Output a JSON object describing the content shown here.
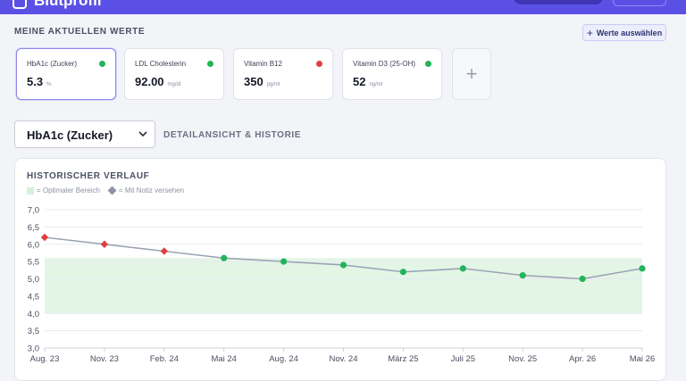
{
  "header": {
    "brand": "Blutprofil"
  },
  "values_section": {
    "title": "MEINE AKTUELLEN WERTE",
    "select_button": "Werte auswählen",
    "cards": [
      {
        "name": "HbA1c (Zucker)",
        "value": "5.3",
        "unit": "%",
        "status_color": "#22b45a",
        "active": true
      },
      {
        "name": "LDL Cholesterin",
        "value": "92.00",
        "unit": "mg/dl",
        "status_color": "#22b45a",
        "active": false
      },
      {
        "name": "Vitamin B12",
        "value": "350",
        "unit": "pg/ml",
        "status_color": "#e04040",
        "active": false
      },
      {
        "name": "Vitamin D3 (25-OH)",
        "value": "52",
        "unit": "ng/ml",
        "status_color": "#22b45a",
        "active": false
      }
    ]
  },
  "detail": {
    "selected": "HbA1c (Zucker)",
    "title": "DETAILANSICHT & HISTORIE"
  },
  "history": {
    "title": "HISTORISCHER VERLAUF",
    "legend_optimal": "= Optimaler Bereich",
    "legend_note": "= Mit Notiz versehen"
  },
  "colors": {
    "accent": "#5b50e6",
    "ok": "#22b45a",
    "bad": "#e04040",
    "line": "#9aa2b6",
    "optimal": "#e3f6e6"
  },
  "chart_data": {
    "type": "line",
    "categories": [
      "Aug. 23",
      "Nov. 23",
      "Feb. 24",
      "Mai 24",
      "Aug. 24",
      "Nov. 24",
      "März 25",
      "Juli 25",
      "Nov. 25",
      "Apr. 26",
      "Mai 26"
    ],
    "y_tick_labels": [
      "7,0",
      "6,5",
      "6,0",
      "5,5",
      "5,0",
      "4,5",
      "4,0",
      "3,5",
      "3,0"
    ],
    "series": [
      {
        "values": [
          6.2,
          6.0,
          5.8,
          5.6,
          5.5,
          5.4,
          5.2,
          5.3,
          5.1,
          5.0,
          5.3
        ],
        "markers": [
          "note",
          "bad",
          "bad",
          "ok",
          "ok",
          "ok",
          "ok",
          "ok",
          "ok",
          "ok",
          "ok"
        ]
      }
    ],
    "optimal_range": [
      4.0,
      5.6
    ],
    "ylim": [
      3.0,
      7.0
    ],
    "grid": true
  }
}
